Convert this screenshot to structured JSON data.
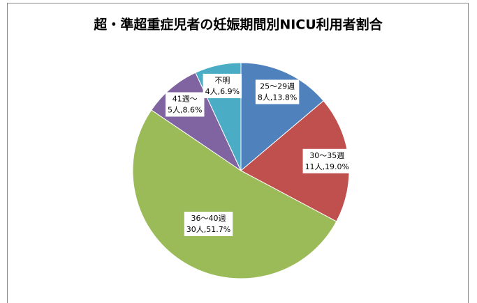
{
  "chart_data": {
    "type": "pie",
    "title": "超・準超重症児者の妊娠期間別NICU利用者割合",
    "categories": [
      "25～29週",
      "30～35週",
      "36～40週",
      "41週～",
      "不明"
    ],
    "values": [
      13.8,
      19.0,
      51.7,
      8.6,
      6.9
    ],
    "value_labels": [
      "8人,13.8%",
      "11人,19.0%",
      "30人,51.7%",
      "5人,8.6%",
      "4人,6.9%"
    ],
    "colors": [
      "#4f81bd",
      "#c0504d",
      "#9bbb59",
      "#8064a2",
      "#4bacc6"
    ]
  }
}
